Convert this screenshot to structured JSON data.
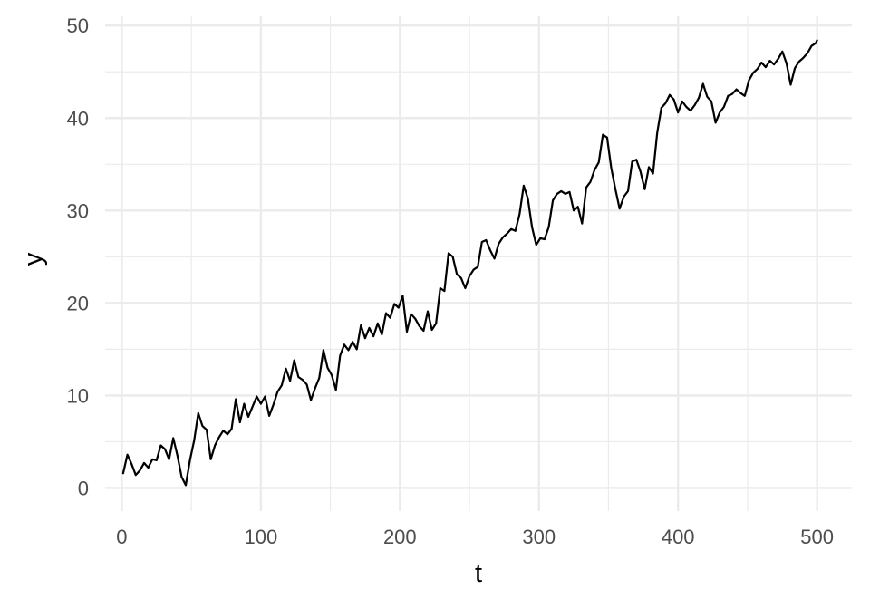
{
  "chart_data": {
    "type": "line",
    "xlabel": "t",
    "ylabel": "y",
    "xlim": [
      -12,
      525
    ],
    "ylim": [
      -2.5,
      51
    ],
    "x_ticks": [
      0,
      100,
      200,
      300,
      400,
      500
    ],
    "x_tick_labels": [
      "0",
      "100",
      "200",
      "300",
      "400",
      "500"
    ],
    "y_ticks": [
      0,
      10,
      20,
      30,
      40,
      50
    ],
    "y_tick_labels": [
      "0",
      "10",
      "20",
      "30",
      "40",
      "50"
    ],
    "grid": true,
    "legend": "none",
    "series": [
      {
        "color": "#000000",
        "x": [
          1,
          4,
          7,
          10,
          13,
          16,
          19,
          22,
          25,
          28,
          31,
          34,
          37,
          40,
          43,
          46,
          49,
          52,
          55,
          58,
          61,
          64,
          67,
          70,
          73,
          76,
          79,
          82,
          85,
          88,
          91,
          94,
          97,
          100,
          103,
          106,
          109,
          112,
          115,
          118,
          121,
          124,
          127,
          130,
          133,
          136,
          139,
          142,
          145,
          148,
          151,
          154,
          157,
          160,
          163,
          166,
          169,
          172,
          175,
          178,
          181,
          184,
          187,
          190,
          193,
          196,
          199,
          202,
          205,
          208,
          211,
          214,
          217,
          220,
          223,
          226,
          229,
          232,
          235,
          238,
          241,
          244,
          247,
          250,
          253,
          256,
          259,
          262,
          265,
          268,
          271,
          274,
          277,
          280,
          283,
          286,
          289,
          292,
          295,
          298,
          301,
          304,
          307,
          310,
          313,
          316,
          319,
          322,
          325,
          328,
          331,
          334,
          337,
          340,
          343,
          346,
          349,
          352,
          355,
          358,
          361,
          364,
          367,
          370,
          373,
          376,
          379,
          382,
          385,
          388,
          391,
          394,
          397,
          400,
          403,
          406,
          409,
          412,
          415,
          418,
          421,
          424,
          427,
          430,
          433,
          436,
          439,
          442,
          445,
          448,
          451,
          454,
          457,
          460,
          463,
          466,
          469,
          472,
          475,
          478,
          481,
          484,
          487,
          490,
          493,
          496,
          499,
          500
        ],
        "values": [
          1.6,
          3.6,
          2.6,
          1.4,
          1.9,
          2.7,
          2.2,
          3.1,
          3.0,
          4.6,
          4.2,
          3.1,
          5.4,
          3.5,
          1.2,
          0.3,
          3.0,
          5.1,
          8.1,
          6.7,
          6.3,
          3.1,
          4.6,
          5.5,
          6.2,
          5.8,
          6.4,
          9.6,
          7.1,
          9.1,
          7.7,
          8.8,
          9.9,
          9.1,
          9.9,
          7.8,
          9.0,
          10.4,
          11.1,
          12.9,
          11.6,
          13.8,
          12.0,
          11.7,
          11.2,
          9.5,
          10.8,
          11.9,
          14.9,
          13.0,
          12.2,
          10.6,
          14.3,
          15.5,
          14.9,
          15.8,
          15.0,
          17.6,
          16.2,
          17.3,
          16.4,
          17.8,
          16.6,
          18.9,
          18.4,
          19.9,
          19.5,
          20.8,
          16.9,
          18.8,
          18.3,
          17.5,
          17.0,
          19.1,
          17.1,
          17.8,
          21.6,
          21.3,
          25.4,
          25.0,
          23.1,
          22.7,
          21.6,
          22.9,
          23.6,
          23.9,
          26.6,
          26.8,
          25.7,
          24.8,
          26.4,
          27.1,
          27.5,
          28.0,
          27.8,
          29.6,
          32.7,
          31.3,
          28.2,
          26.3,
          27.0,
          26.9,
          28.2,
          31.1,
          31.8,
          32.1,
          31.8,
          32.0,
          30.0,
          30.4,
          28.6,
          32.5,
          33.1,
          34.4,
          35.2,
          38.2,
          37.9,
          34.6,
          32.3,
          30.2,
          31.5,
          32.1,
          35.3,
          35.5,
          34.2,
          32.3,
          34.7,
          34.0,
          38.4,
          41.1,
          41.6,
          42.5,
          42.0,
          40.6,
          41.8,
          41.2,
          40.8,
          41.4,
          42.2,
          43.7,
          42.3,
          41.8,
          39.5,
          40.6,
          41.2,
          42.4,
          42.6,
          43.1,
          42.7,
          42.4,
          44.1,
          44.9,
          45.3,
          46.0,
          45.5,
          46.2,
          45.8,
          46.4,
          47.2,
          45.9,
          43.6,
          45.4,
          46.1,
          46.5,
          47.0,
          47.8,
          48.1,
          48.4
        ]
      }
    ]
  }
}
